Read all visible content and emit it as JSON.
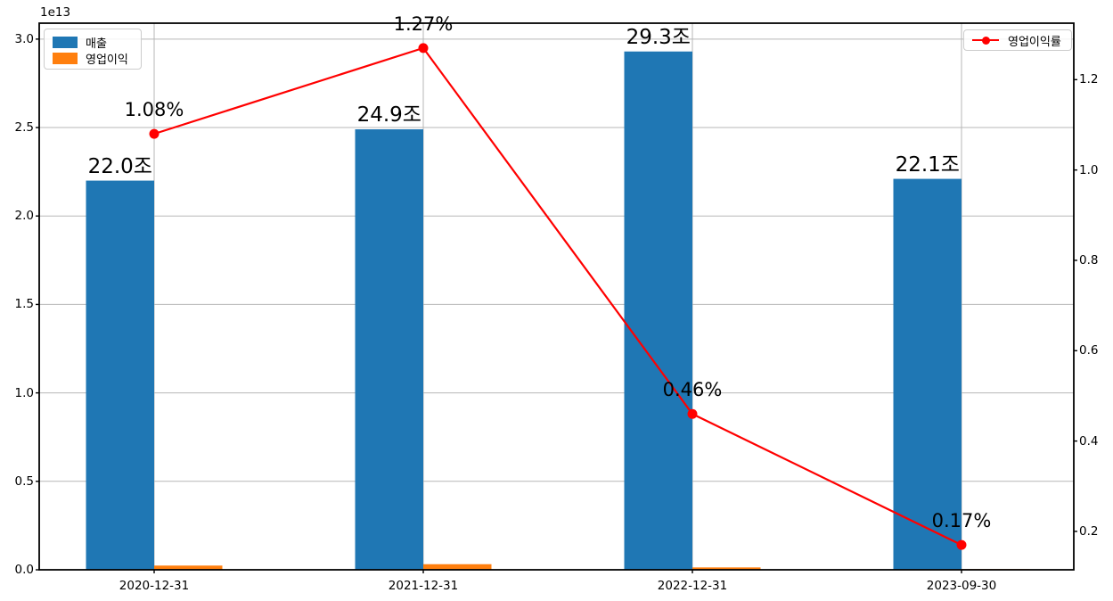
{
  "chart_data": {
    "type": "bar+line",
    "categories": [
      "2020-12-31",
      "2021-12-31",
      "2022-12-31",
      "2023-09-30"
    ],
    "series": [
      {
        "name": "매출",
        "type": "bar",
        "axis": "left",
        "color": "#1f77b4",
        "values": [
          22000000000000,
          24900000000000,
          29300000000000,
          22100000000000
        ],
        "value_labels": [
          "22.0조",
          "24.9조",
          "29.3조",
          "22.1조"
        ]
      },
      {
        "name": "영업이익",
        "type": "bar",
        "axis": "left",
        "color": "#ff7f0e",
        "values": [
          238000000000,
          316000000000,
          135000000000,
          38000000000
        ],
        "value_labels": []
      },
      {
        "name": "영업이익률",
        "type": "line",
        "axis": "right",
        "color": "#ff0000",
        "values": [
          1.08,
          1.27,
          0.46,
          0.17
        ],
        "value_labels": [
          "1.08%",
          "1.27%",
          "0.46%",
          "0.17%"
        ]
      }
    ],
    "left_axis": {
      "offset_text": "1e13",
      "tick_labels": [
        "0.0",
        "0.5",
        "1.0",
        "1.5",
        "2.0",
        "2.5",
        "3.0"
      ],
      "tick_values": [
        0,
        5000000000000,
        10000000000000,
        15000000000000,
        20000000000000,
        25000000000000,
        30000000000000
      ],
      "ylim": [
        0,
        30900000000000
      ]
    },
    "right_axis": {
      "tick_labels": [
        "0.2",
        "0.4",
        "0.6",
        "0.8",
        "1.0",
        "1.2"
      ],
      "tick_values": [
        0.2,
        0.4,
        0.6,
        0.8,
        1.0,
        1.2
      ],
      "ylim": [
        0.115,
        1.325
      ]
    },
    "grid": true,
    "legend_positions": [
      "upper-left",
      "upper-right"
    ],
    "colors": {
      "grid": "#b7b7b7",
      "spine": "#000000",
      "text": "#000000"
    }
  }
}
